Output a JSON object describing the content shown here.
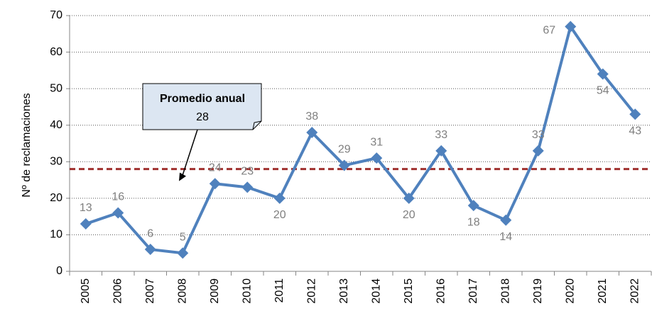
{
  "chart_data": {
    "type": "line",
    "y_label": "Nº de reclamaciones",
    "categories": [
      "2005",
      "2006",
      "2007",
      "2008",
      "2009",
      "2010",
      "2011",
      "2012",
      "2013",
      "2014",
      "2015",
      "2016",
      "2017",
      "2018",
      "2019",
      "2020",
      "2021",
      "2022"
    ],
    "series": [
      {
        "name": "Reclamaciones",
        "color": "#4f81bd",
        "values": [
          13,
          16,
          6,
          5,
          24,
          23,
          20,
          38,
          29,
          31,
          20,
          33,
          18,
          14,
          33,
          67,
          54,
          43
        ]
      }
    ],
    "average": 28,
    "average_label": "Promedio anual",
    "average_color": "#a0302e",
    "ylim": [
      0,
      70
    ],
    "yticks": [
      0,
      10,
      20,
      30,
      40,
      50,
      60,
      70
    ],
    "grid": true
  }
}
